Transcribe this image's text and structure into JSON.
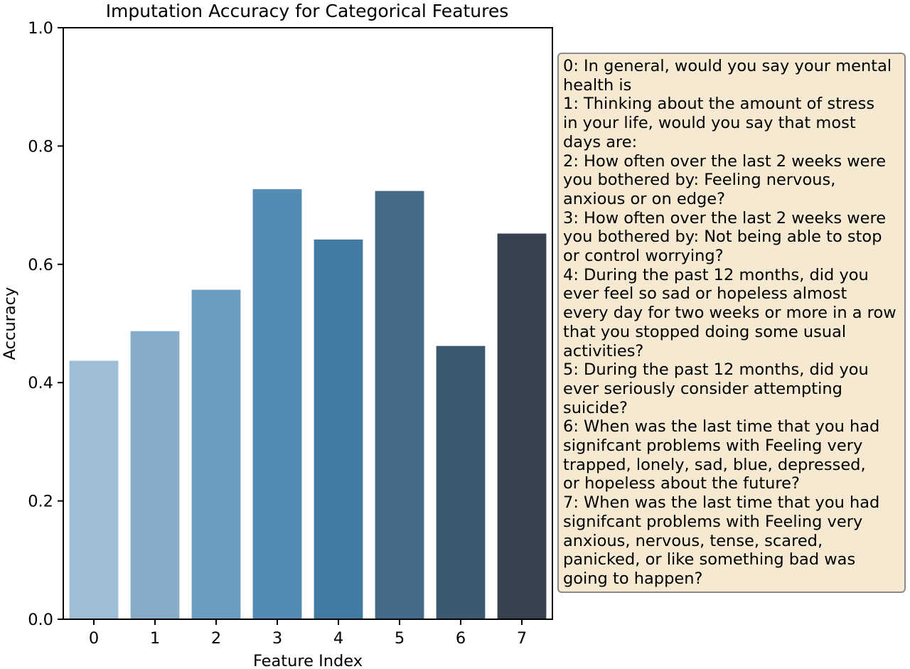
{
  "chart_data": {
    "type": "bar",
    "title": "Imputation Accuracy for Categorical Features",
    "xlabel": "Feature Index",
    "ylabel": "Accuracy",
    "categories": [
      "0",
      "1",
      "2",
      "3",
      "4",
      "5",
      "6",
      "7"
    ],
    "values": [
      0.437,
      0.487,
      0.557,
      0.727,
      0.642,
      0.724,
      0.462,
      0.652
    ],
    "ylim": [
      0,
      1.0
    ],
    "yticks": [
      "0.0",
      "0.2",
      "0.4",
      "0.6",
      "0.8",
      "1.0"
    ],
    "grid": false,
    "colors": [
      "#9ebdd6",
      "#86acca",
      "#6b9dc0",
      "#548bb4",
      "#437aa2",
      "#436a89",
      "#3c5870",
      "#36424d"
    ],
    "legend": {
      "placement": "right",
      "background": "#f5e9d2",
      "lines": [
        "0: In general, would you say your mental",
        "health is",
        "1: Thinking about the amount of stress",
        "in your life, would you say that most",
        "days are:",
        "2: How often over the last 2 weeks were",
        "you bothered by: Feeling nervous,",
        "anxious or on edge?",
        "3: How often over the last 2 weeks were",
        "you bothered by: Not being able to stop",
        "or control worrying?",
        "4: During the past 12 months, did you",
        "ever feel so sad or hopeless almost",
        "every day for two weeks or more in a row",
        "that you stopped doing some usual",
        "activities?",
        "5: During the past 12 months, did you",
        "ever seriously consider attempting",
        "suicide?",
        "6: When was the last time that you had",
        "signifcant problems with Feeling very",
        "trapped, lonely, sad, blue, depressed,",
        "or hopeless about the future?",
        "7: When was the last time that you had",
        "signifcant problems with Feeling very",
        "anxious, nervous, tense, scared,",
        "panicked, or like something bad was",
        "going to happen?"
      ]
    }
  }
}
